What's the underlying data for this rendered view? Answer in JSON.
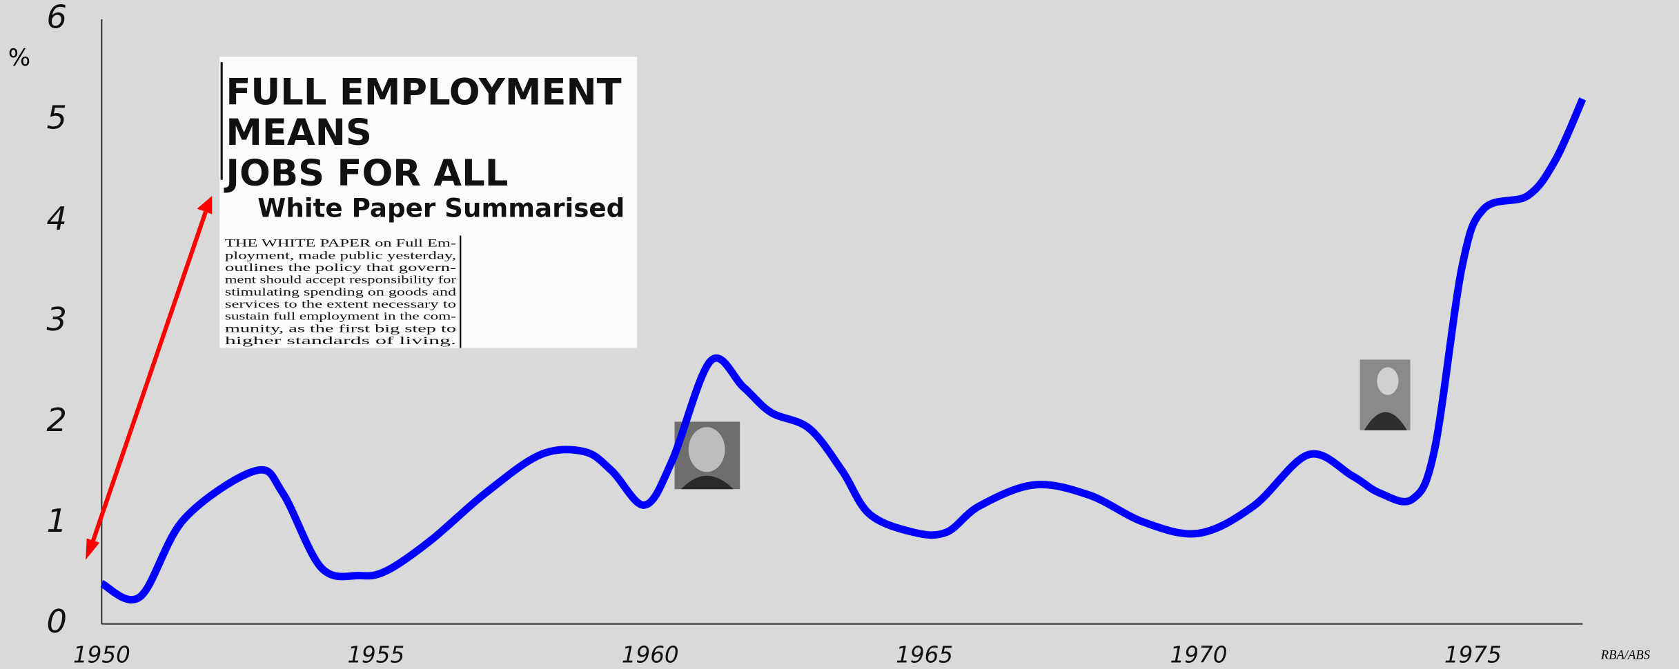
{
  "chart_data": {
    "type": "line",
    "y_label": "%",
    "source": "RBA/ABS",
    "x": [
      1950,
      1950.7,
      1951.5,
      1952.8,
      1953.3,
      1954,
      1954.7,
      1955.2,
      1956,
      1957,
      1958,
      1958.8,
      1959.3,
      1959.9,
      1960.4,
      1961.1,
      1961.7,
      1962.2,
      1962.9,
      1963.5,
      1964,
      1964.8,
      1965.4,
      1966,
      1967,
      1968,
      1969,
      1970,
      1971,
      1972,
      1972.8,
      1973.3,
      1973.9,
      1974.3,
      1974.8,
      1975.2,
      1976,
      1976.5,
      1977
    ],
    "series": [
      {
        "color": "#0000ff",
        "values": [
          0.4,
          0.27,
          1.04,
          1.52,
          1.3,
          0.56,
          0.48,
          0.53,
          0.83,
          1.3,
          1.68,
          1.71,
          1.52,
          1.18,
          1.62,
          2.61,
          2.35,
          2.1,
          1.94,
          1.52,
          1.09,
          0.91,
          0.91,
          1.17,
          1.38,
          1.28,
          1.01,
          0.9,
          1.17,
          1.68,
          1.47,
          1.3,
          1.24,
          1.73,
          3.54,
          4.12,
          4.25,
          4.6,
          5.21
        ]
      }
    ],
    "xlim": [
      1950,
      1977
    ],
    "ylim": [
      0,
      6
    ],
    "xticks": [
      1950,
      1955,
      1960,
      1965,
      1970,
      1975
    ],
    "yticks": [
      0,
      1,
      2,
      3,
      4,
      5,
      6
    ],
    "grid": false,
    "annotations": {
      "headline": [
        "FULL EMPLOYMENT",
        "MEANS",
        "JOBS FOR ALL"
      ],
      "subheading": "White Paper Summarised",
      "body": [
        "THE WHITE PAPER on Full Em-",
        "ployment, made public yesterday,",
        "outlines the policy that govern-",
        "ment should accept responsibility for",
        "stimulating spending on goods and",
        "services to the extent necessary to",
        "sustain full employment in the com-",
        "munity, as the first big step to",
        "higher standards of living."
      ]
    }
  }
}
